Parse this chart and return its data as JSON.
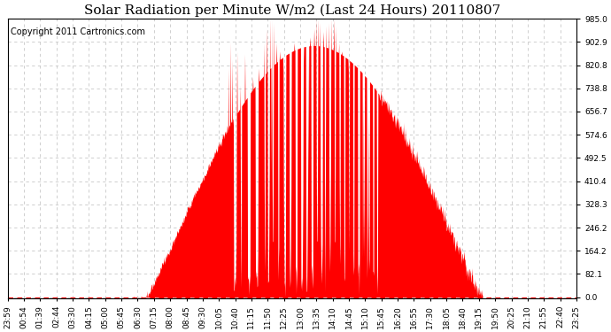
{
  "title": "Solar Radiation per Minute W/m2 (Last 24 Hours) 20110807",
  "copyright": "Copyright 2011 Cartronics.com",
  "background_color": "#ffffff",
  "plot_bg_color": "#ffffff",
  "fill_color": "#ff0000",
  "line_color": "#ff0000",
  "dashed_line_color": "#ff0000",
  "grid_color": "#c8c8c8",
  "ymin": 0.0,
  "ymax": 985.0,
  "yticks": [
    0.0,
    82.1,
    164.2,
    246.2,
    328.3,
    410.4,
    492.5,
    574.6,
    656.7,
    738.8,
    820.8,
    902.9,
    985.0
  ],
  "xtick_labels": [
    "23:59",
    "00:54",
    "01:39",
    "02:44",
    "03:30",
    "04:15",
    "05:00",
    "05:45",
    "06:30",
    "07:15",
    "08:00",
    "08:45",
    "09:30",
    "10:05",
    "10:40",
    "11:15",
    "11:50",
    "12:25",
    "13:00",
    "13:35",
    "14:10",
    "14:45",
    "15:10",
    "15:45",
    "16:20",
    "16:55",
    "17:30",
    "18:05",
    "18:40",
    "19:15",
    "19:50",
    "20:25",
    "21:10",
    "21:55",
    "22:40",
    "23:25"
  ],
  "title_fontsize": 11,
  "copyright_fontsize": 7,
  "tick_fontsize": 6.5
}
